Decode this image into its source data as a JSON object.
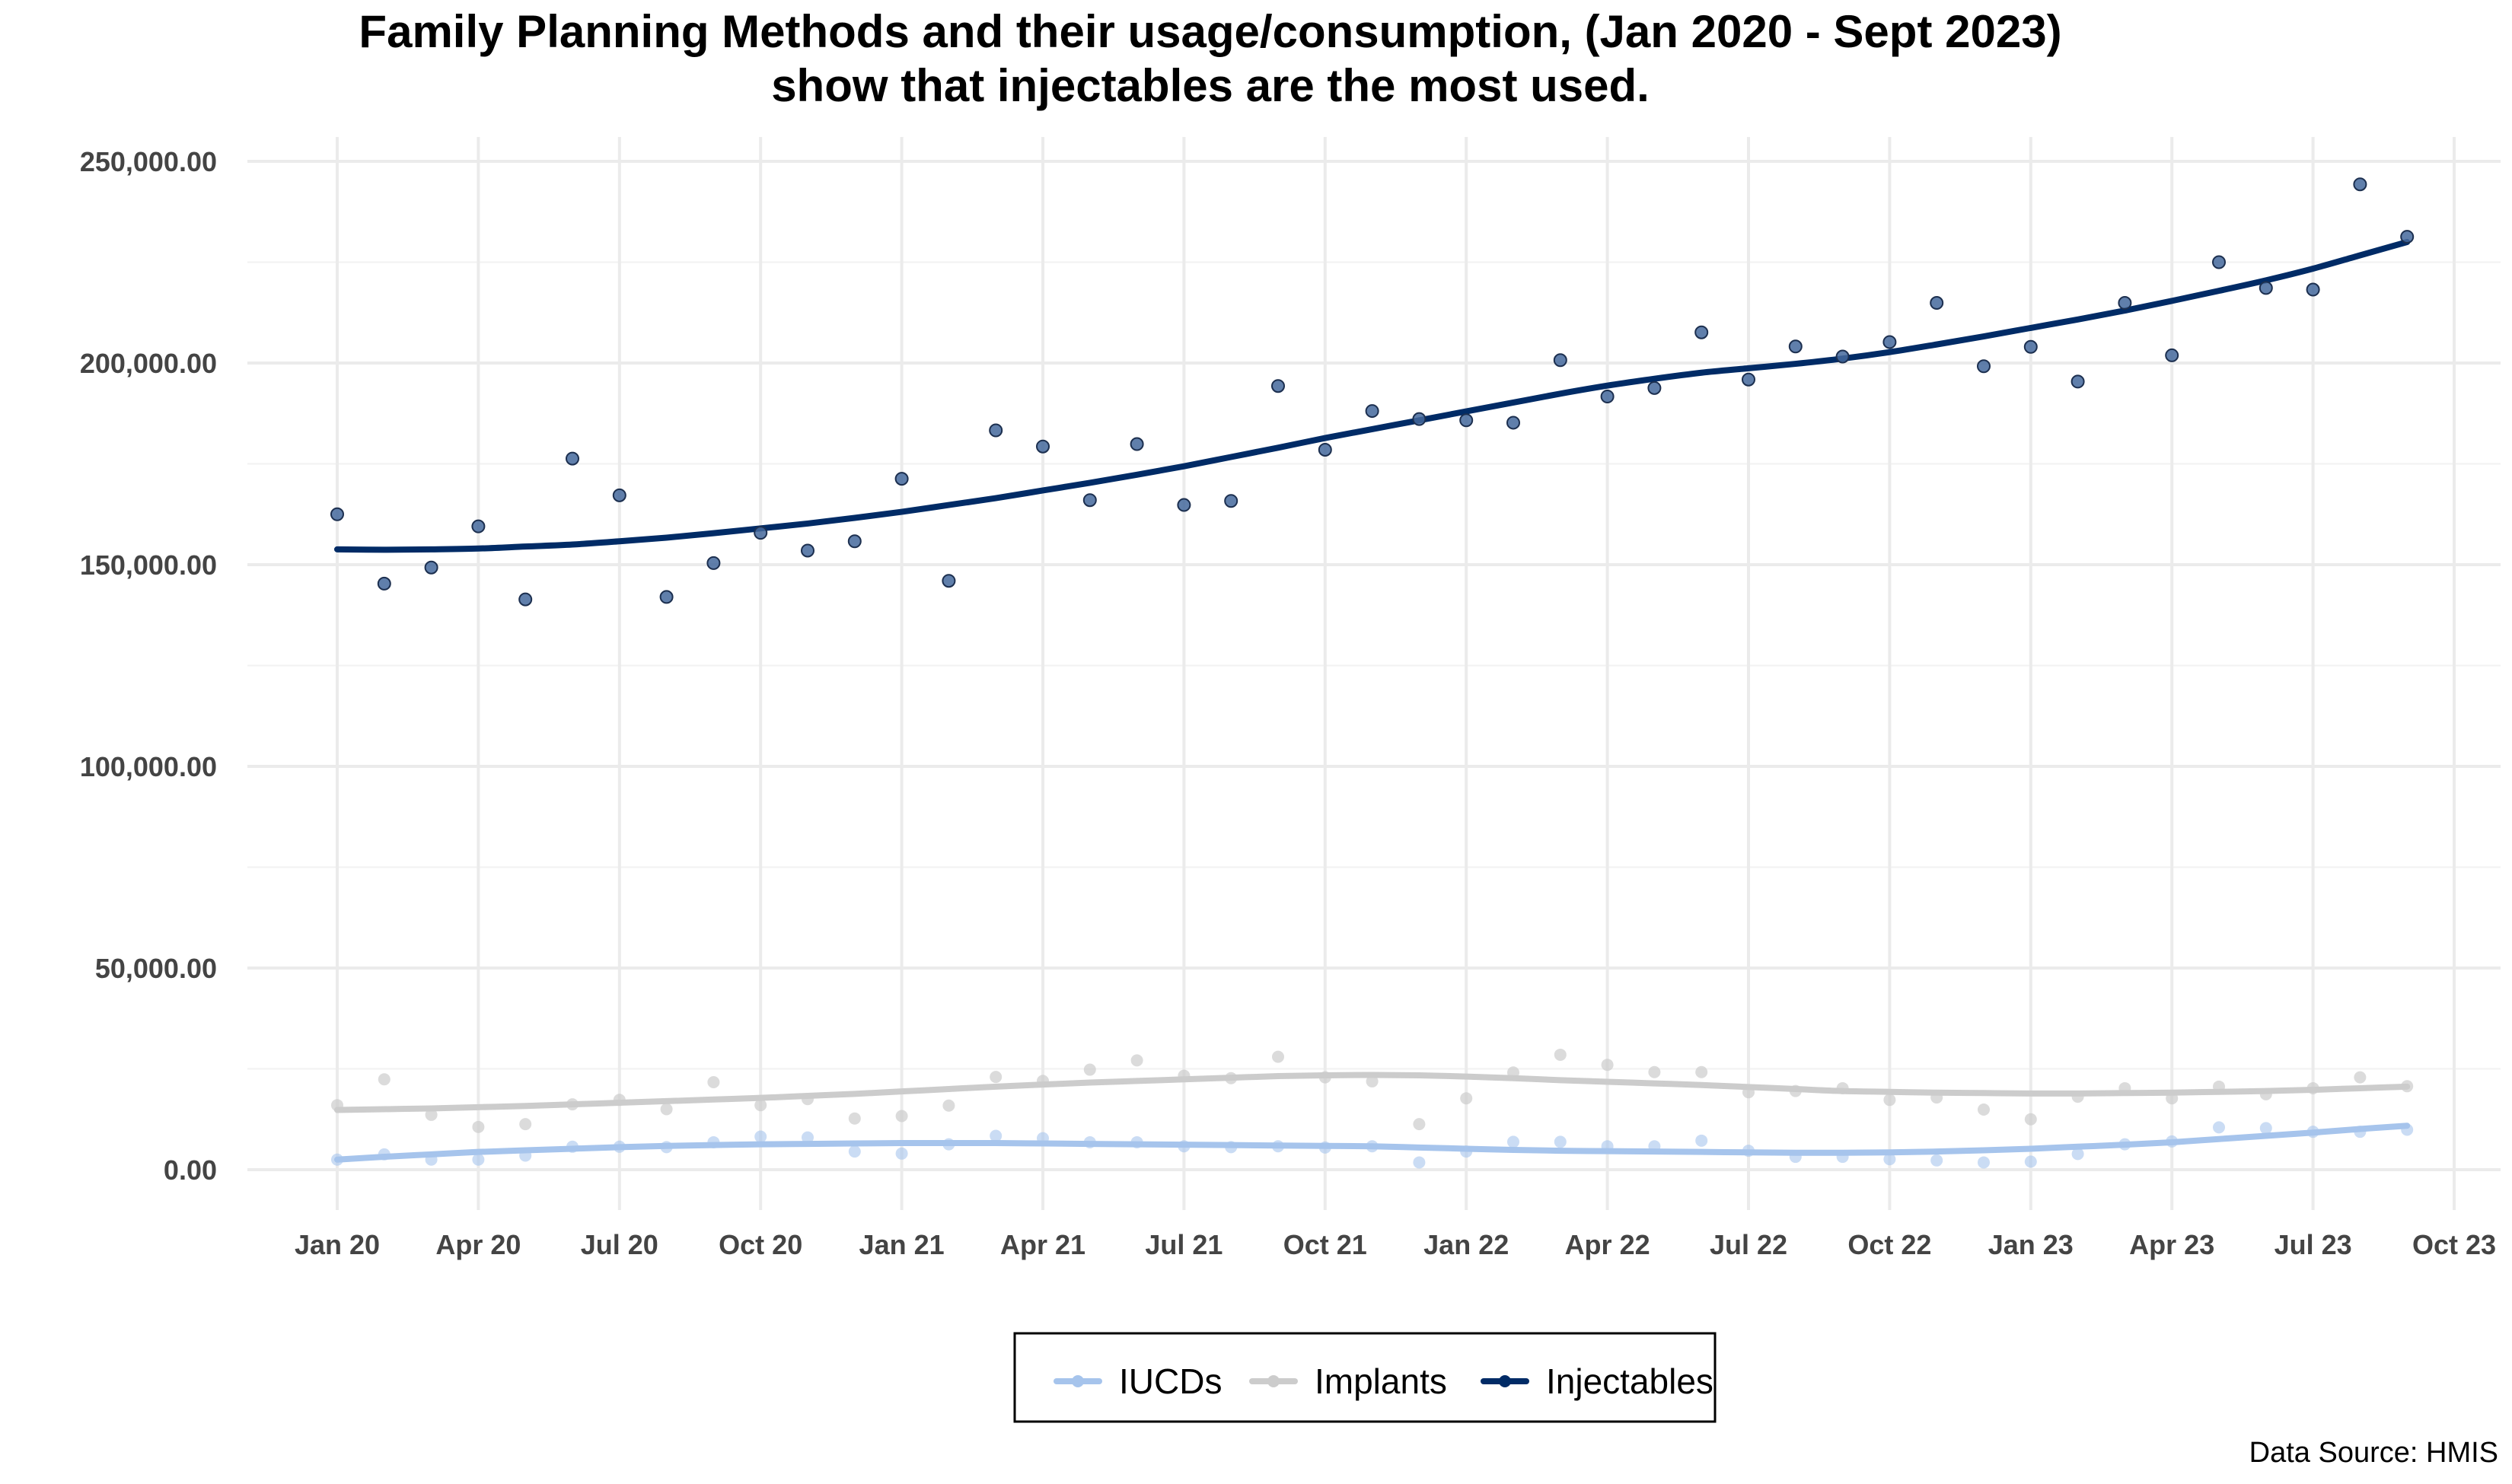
{
  "chart_data": {
    "type": "scatter",
    "title_line1": "Family Planning Methods and their usage/consumption, (Jan 2020 - Sept 2023)",
    "title_line2": "show that injectables are the most used.",
    "xlabel": "",
    "ylabel": "",
    "ylim": [
      0,
      250000
    ],
    "yticks": [
      "0.00",
      "50,000.00",
      "100,000.00",
      "150,000.00",
      "200,000.00",
      "250,000.00"
    ],
    "ytick_values": [
      0,
      50000,
      100000,
      150000,
      200000,
      250000
    ],
    "xticks": [
      "Jan 20",
      "Apr 20",
      "Jul 20",
      "Oct 20",
      "Jan 21",
      "Apr 21",
      "Jul 21",
      "Oct 21",
      "Jan 22",
      "Apr 22",
      "Jul 22",
      "Oct 22",
      "Jan 23",
      "Apr 23",
      "Jul 23",
      "Oct 23"
    ],
    "x_months": [
      "2020-01",
      "2020-02",
      "2020-03",
      "2020-04",
      "2020-05",
      "2020-06",
      "2020-07",
      "2020-08",
      "2020-09",
      "2020-10",
      "2020-11",
      "2020-12",
      "2021-01",
      "2021-02",
      "2021-03",
      "2021-04",
      "2021-05",
      "2021-06",
      "2021-07",
      "2021-08",
      "2021-09",
      "2021-10",
      "2021-11",
      "2021-12",
      "2022-01",
      "2022-02",
      "2022-03",
      "2022-04",
      "2022-05",
      "2022-06",
      "2022-07",
      "2022-08",
      "2022-09",
      "2022-10",
      "2022-11",
      "2022-12",
      "2023-01",
      "2023-02",
      "2023-03",
      "2023-04",
      "2023-05",
      "2023-06",
      "2023-07",
      "2023-08",
      "2023-09"
    ],
    "grid": true,
    "legend_position": "bottom",
    "source": "Data Source: HMIS",
    "series": [
      {
        "name": "IUCDs",
        "color": "#a6c4ec",
        "values": [
          2500,
          3800,
          2500,
          2500,
          3500,
          5700,
          5700,
          5600,
          6800,
          8200,
          8000,
          4500,
          4000,
          6300,
          8400,
          7800,
          6800,
          6800,
          5800,
          5600,
          5800,
          5500,
          5800,
          1800,
          4500,
          6900,
          6900,
          5800,
          5800,
          7200,
          4700,
          3200,
          3200,
          2600,
          2300,
          1800,
          2000,
          3900,
          6300,
          7000,
          10500,
          10300,
          9400,
          9400,
          9900
        ],
        "trend": [
          2500,
          3200,
          3800,
          4400,
          4800,
          5200,
          5600,
          5900,
          6100,
          6300,
          6400,
          6500,
          6600,
          6600,
          6600,
          6500,
          6400,
          6300,
          6200,
          6100,
          6000,
          5900,
          5800,
          5500,
          5200,
          4900,
          4700,
          4600,
          4500,
          4400,
          4300,
          4200,
          4200,
          4300,
          4500,
          4800,
          5200,
          5700,
          6200,
          6800,
          7600,
          8400,
          9200,
          10100,
          10900
        ]
      },
      {
        "name": "Implants",
        "color": "#cccccc",
        "values": [
          16000,
          22400,
          13600,
          10600,
          11300,
          16200,
          17300,
          15000,
          21700,
          16000,
          17500,
          12700,
          13300,
          15900,
          23000,
          22000,
          24800,
          27100,
          23300,
          22700,
          28000,
          22900,
          21900,
          11300,
          17700,
          24100,
          28500,
          26000,
          24200,
          24200,
          19200,
          19500,
          20200,
          17300,
          17900,
          14900,
          12500,
          18100,
          20200,
          17700,
          20600,
          18700,
          20200,
          22900,
          20700
        ],
        "trend": [
          14800,
          15000,
          15200,
          15500,
          15800,
          16200,
          16600,
          17000,
          17400,
          17800,
          18300,
          18800,
          19400,
          20000,
          20600,
          21100,
          21600,
          22000,
          22400,
          22800,
          23200,
          23400,
          23500,
          23400,
          23100,
          22700,
          22200,
          21800,
          21400,
          21000,
          20500,
          20000,
          19500,
          19300,
          19100,
          19000,
          18900,
          18900,
          19000,
          19100,
          19300,
          19500,
          19800,
          20200,
          20600
        ]
      },
      {
        "name": "Injectables",
        "color": "#002b66",
        "values": [
          162500,
          145300,
          149300,
          159500,
          141400,
          176300,
          167200,
          142000,
          150400,
          157900,
          153500,
          155800,
          171300,
          146000,
          183300,
          179300,
          166000,
          179900,
          164800,
          165800,
          194300,
          178500,
          188100,
          186100,
          185800,
          185200,
          200700,
          191700,
          193800,
          207600,
          195900,
          204100,
          201600,
          205200,
          214900,
          199200,
          204000,
          195400,
          214900,
          201900,
          225000,
          218600,
          218200,
          244300,
          231300
        ]
      }
    ],
    "injectables_trend": [
      153800,
      153700,
      153800,
      154000,
      154500,
      155000,
      155800,
      156700,
      157800,
      159000,
      160200,
      161600,
      163100,
      164800,
      166500,
      168400,
      170300,
      172300,
      174400,
      176700,
      179000,
      181400,
      183600,
      185800,
      188000,
      190200,
      192400,
      194400,
      196100,
      197600,
      198700,
      199800,
      201100,
      202700,
      204600,
      206600,
      208700,
      210800,
      213000,
      215400,
      217900,
      220500,
      223400,
      226700,
      230000
    ]
  }
}
